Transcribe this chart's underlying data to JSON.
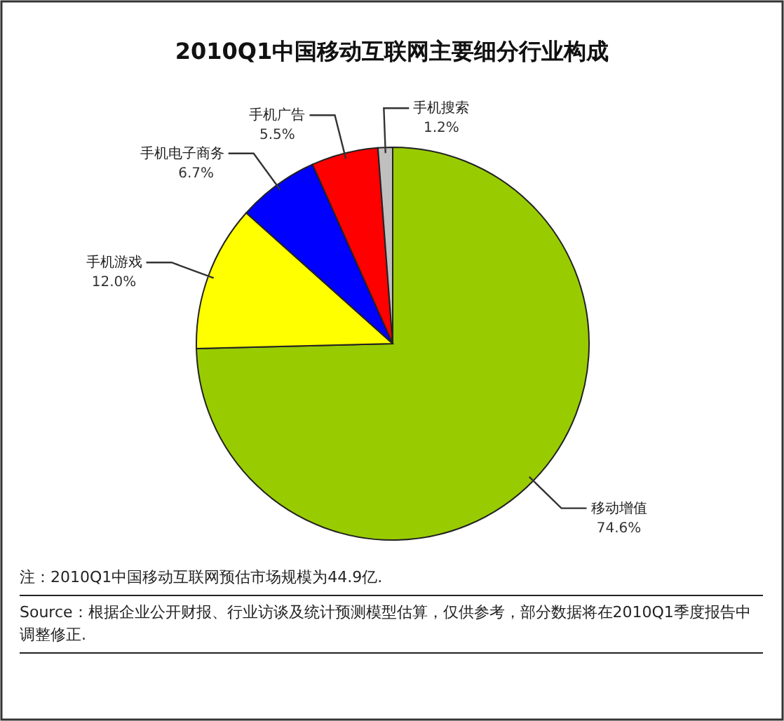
{
  "chart_data": {
    "type": "pie",
    "title": "2010Q1中国移动互联网主要细分行业构成",
    "categories": [
      "移动增值",
      "手机游戏",
      "手机电子商务",
      "手机广告",
      "手机搜索"
    ],
    "values": [
      74.6,
      12.0,
      6.7,
      5.5,
      1.2
    ],
    "value_labels": [
      "74.6%",
      "12.0%",
      "6.7%",
      "5.5%",
      "1.2%"
    ],
    "colors": [
      "#99cc00",
      "#ffff00",
      "#0000ff",
      "#ff0000",
      "#c0c0c0"
    ],
    "annotations": [
      "注：2010Q1中国移动互联网预估市场规模为44.9亿.",
      "Source：根据企业公开财报、行业访谈及统计预测模型估算，仅供参考，部分数据将在2010Q1季度报告中调整修正."
    ],
    "legend": false
  }
}
